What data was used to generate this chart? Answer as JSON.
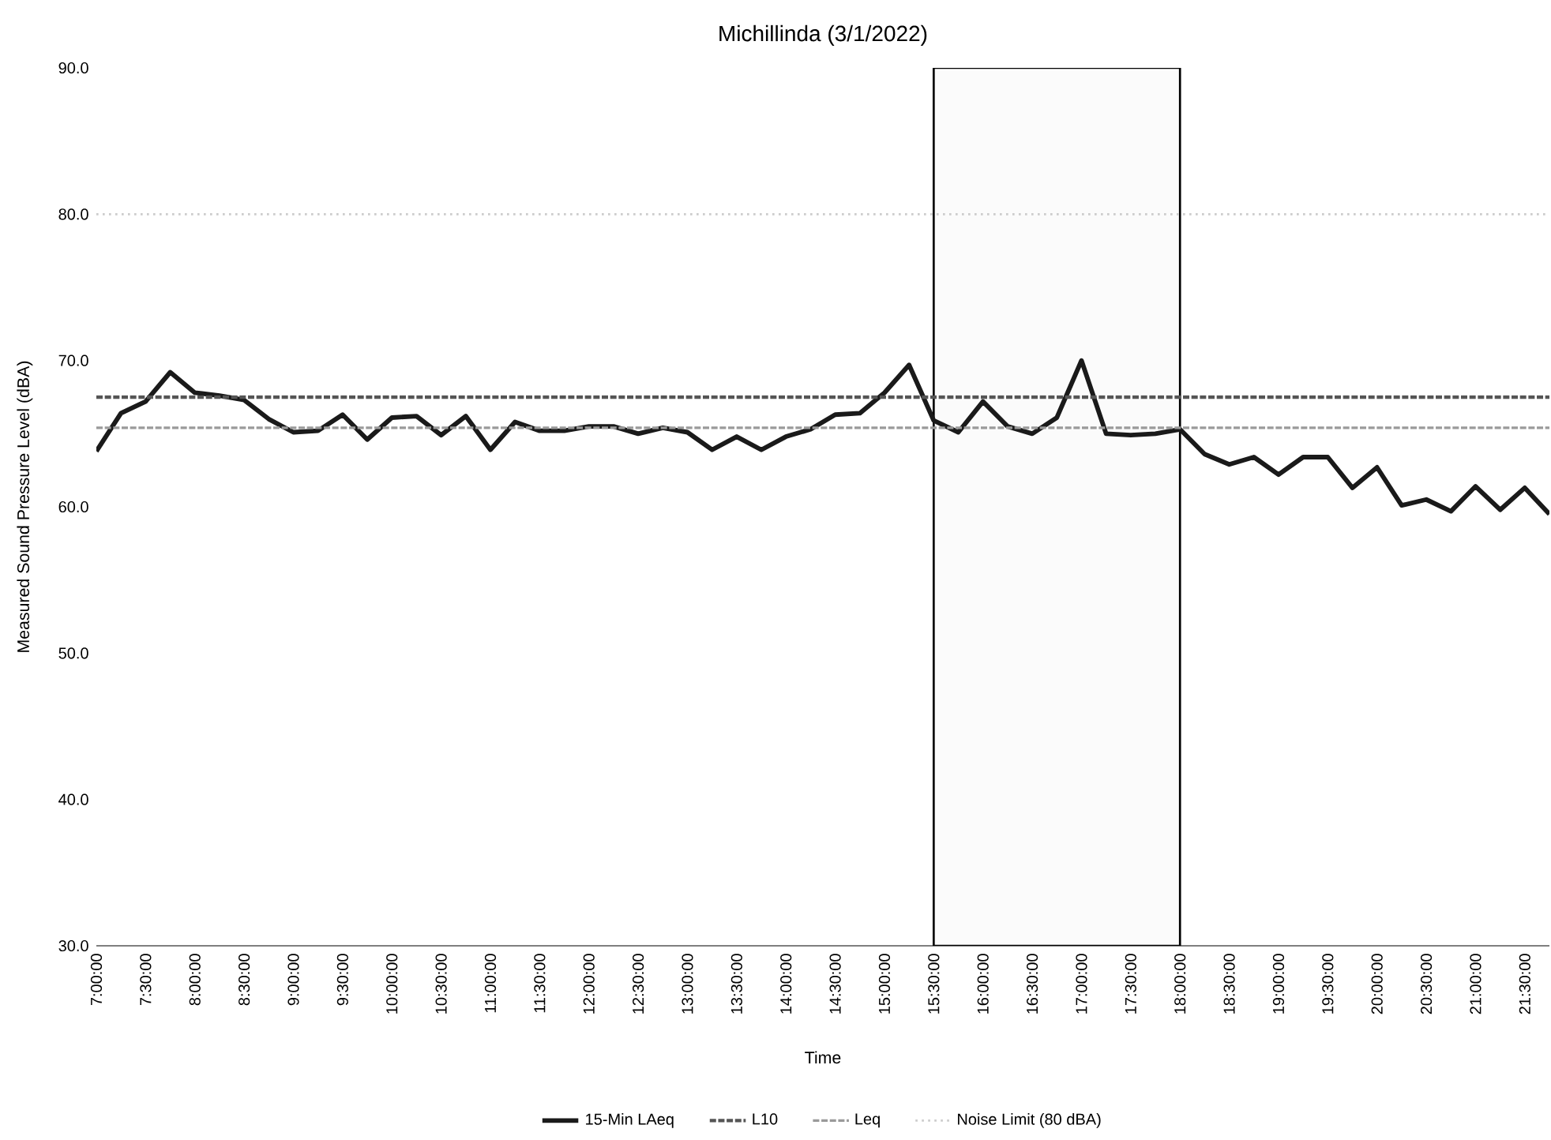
{
  "chart_data": {
    "type": "line",
    "title": "Michillinda (3/1/2022)",
    "xlabel": "Time",
    "ylabel": "Measured Sound Pressure Level (dBA)",
    "xlim": [
      7,
      21.75
    ],
    "ylim": [
      30,
      90
    ],
    "xticks": [
      {
        "value": 7,
        "label": "7:00:00"
      },
      {
        "value": 7.5,
        "label": "7:30:00"
      },
      {
        "value": 8,
        "label": "8:00:00"
      },
      {
        "value": 8.5,
        "label": "8:30:00"
      },
      {
        "value": 9,
        "label": "9:00:00"
      },
      {
        "value": 9.5,
        "label": "9:30:00"
      },
      {
        "value": 10,
        "label": "10:00:00"
      },
      {
        "value": 10.5,
        "label": "10:30:00"
      },
      {
        "value": 11,
        "label": "11:00:00"
      },
      {
        "value": 11.5,
        "label": "11:30:00"
      },
      {
        "value": 12,
        "label": "12:00:00"
      },
      {
        "value": 12.5,
        "label": "12:30:00"
      },
      {
        "value": 13,
        "label": "13:00:00"
      },
      {
        "value": 13.5,
        "label": "13:30:00"
      },
      {
        "value": 14,
        "label": "14:00:00"
      },
      {
        "value": 14.5,
        "label": "14:30:00"
      },
      {
        "value": 15,
        "label": "15:00:00"
      },
      {
        "value": 15.5,
        "label": "15:30:00"
      },
      {
        "value": 16,
        "label": "16:00:00"
      },
      {
        "value": 16.5,
        "label": "16:30:00"
      },
      {
        "value": 17,
        "label": "17:00:00"
      },
      {
        "value": 17.5,
        "label": "17:30:00"
      },
      {
        "value": 18,
        "label": "18:00:00"
      },
      {
        "value": 18.5,
        "label": "18:30:00"
      },
      {
        "value": 19,
        "label": "19:00:00"
      },
      {
        "value": 19.5,
        "label": "19:30:00"
      },
      {
        "value": 20,
        "label": "20:00:00"
      },
      {
        "value": 20.5,
        "label": "20:30:00"
      },
      {
        "value": 21,
        "label": "21:00:00"
      },
      {
        "value": 21.5,
        "label": "21:30:00"
      }
    ],
    "yticks": [
      {
        "value": 30,
        "label": "30.0"
      },
      {
        "value": 40,
        "label": "40.0"
      },
      {
        "value": 50,
        "label": "50.0"
      },
      {
        "value": 60,
        "label": "60.0"
      },
      {
        "value": 70,
        "label": "70.0"
      },
      {
        "value": 80,
        "label": "80.0"
      },
      {
        "value": 90,
        "label": "90.0"
      }
    ],
    "legend": "bottom",
    "marker": "none",
    "bands": [
      {
        "axis": "x",
        "from": 15.5,
        "to": 18,
        "color": "#fbfbfb"
      }
    ],
    "series": [
      {
        "name": "15-Min LAeq",
        "color": "#1a1a1a",
        "line_style": "solid",
        "x": [
          7,
          7.25,
          7.5,
          7.75,
          8,
          8.25,
          8.5,
          8.75,
          9,
          9.25,
          9.5,
          9.75,
          10,
          10.25,
          10.5,
          10.75,
          11,
          11.25,
          11.5,
          11.75,
          12,
          12.25,
          12.5,
          12.75,
          13,
          13.25,
          13.5,
          13.75,
          14,
          14.25,
          14.5,
          14.75,
          15,
          15.25,
          15.5,
          15.75,
          16,
          16.25,
          16.5,
          16.75,
          17,
          17.25,
          17.5,
          17.75,
          18,
          18.25,
          18.5,
          18.75,
          19,
          19.25,
          19.5,
          19.75,
          20,
          20.25,
          20.5,
          20.75,
          21,
          21.25,
          21.5,
          21.75
        ],
        "values": [
          63.8,
          66.4,
          67.2,
          69.2,
          67.8,
          67.6,
          67.3,
          66.0,
          65.1,
          65.2,
          66.3,
          64.6,
          66.1,
          66.2,
          64.9,
          66.2,
          63.9,
          65.8,
          65.2,
          65.2,
          65.5,
          65.5,
          65.0,
          65.4,
          65.1,
          63.9,
          64.8,
          63.9,
          64.8,
          65.3,
          66.3,
          66.4,
          67.8,
          69.7,
          65.9,
          65.1,
          67.2,
          65.5,
          65.0,
          66.1,
          70.0,
          65.0,
          64.9,
          65.0,
          65.3,
          63.6,
          62.9,
          63.4,
          62.2,
          63.4,
          63.4,
          61.3,
          62.7,
          60.1,
          60.5,
          59.7,
          61.4,
          59.8,
          61.3,
          59.5
        ]
      },
      {
        "name": "L10",
        "color": "#555555",
        "line_style": "dashed",
        "x": [
          7,
          21.75
        ],
        "values": [
          67.5,
          67.5
        ]
      },
      {
        "name": "Leq",
        "color": "#9a9a9a",
        "line_style": "dashed",
        "x": [
          7,
          21.75
        ],
        "values": [
          65.4,
          65.4
        ]
      },
      {
        "name": "Noise Limit (80 dBA)",
        "color": "#cccccc",
        "line_style": "dotted",
        "x": [
          7,
          21.75
        ],
        "values": [
          80,
          80
        ]
      }
    ]
  }
}
